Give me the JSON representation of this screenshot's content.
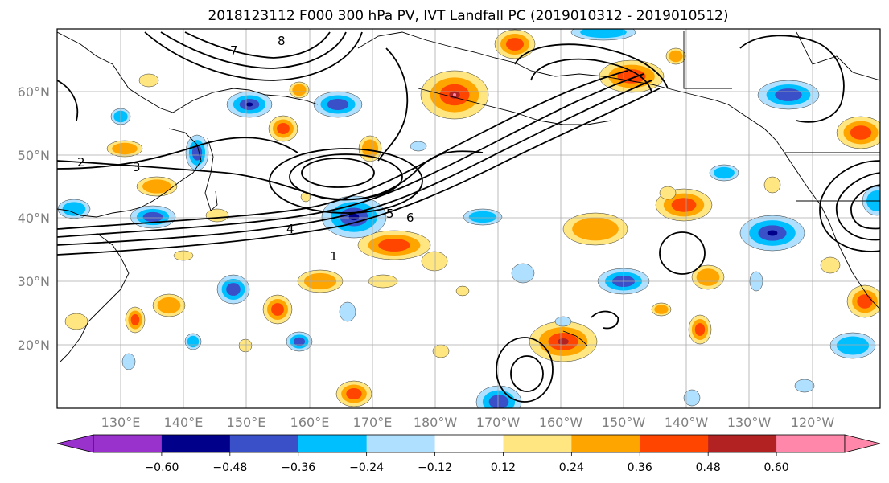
{
  "title": "2018123112 F000 300 hPa PV, IVT Landfall PC (2019010312 - 2019010512)",
  "lon_ticks": [
    "130°E",
    "140°E",
    "150°E",
    "160°E",
    "170°E",
    "180°W",
    "170°W",
    "160°W",
    "150°W",
    "140°W",
    "130°W",
    "120°W"
  ],
  "lat_ticks": [
    "20°N",
    "30°N",
    "40°N",
    "50°N",
    "60°N"
  ],
  "colorbar": {
    "ticks": [
      "−0.60",
      "−0.48",
      "−0.36",
      "−0.24",
      "−0.12",
      "0.12",
      "0.24",
      "0.36",
      "0.48",
      "0.60"
    ],
    "colors": [
      "#9932cc",
      "#00008b",
      "#3a50c8",
      "#00bfff",
      "#b0e0ff",
      "#ffffff",
      "#ffe680",
      "#ffa500",
      "#ff4500",
      "#b22222",
      "#ff88aa"
    ]
  },
  "contour_labels": [
    "1",
    "2",
    "3",
    "4",
    "5",
    "6",
    "7",
    "8"
  ]
}
